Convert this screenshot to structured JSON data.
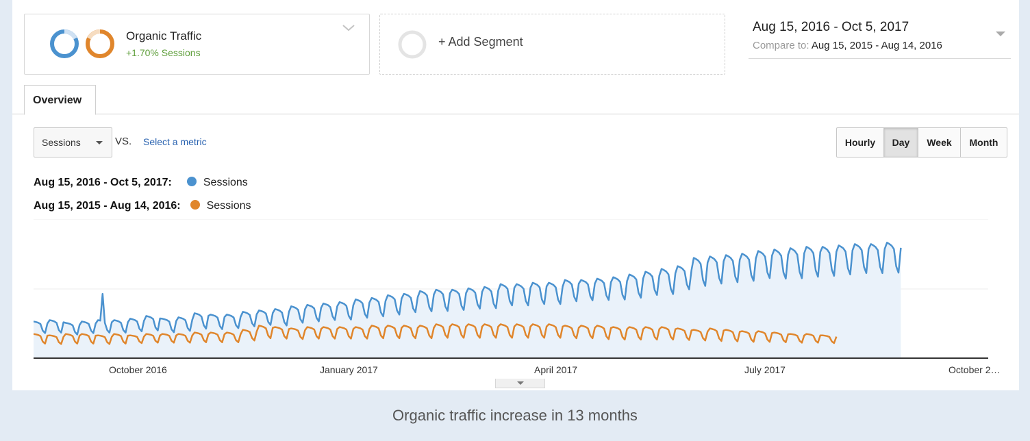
{
  "segments": {
    "primary": {
      "title": "Organic Traffic",
      "subtitle": "+1.70% Sessions"
    },
    "add_label": "+ Add Segment"
  },
  "date_range": {
    "main": "Aug 15, 2016 - Oct 5, 2017",
    "compare_label": "Compare to:",
    "compare_value": "Aug 15, 2015 - Aug 14, 2016"
  },
  "tabs": {
    "overview": "Overview"
  },
  "metric": {
    "selected": "Sessions",
    "vs": "VS.",
    "select_metric": "Select a metric"
  },
  "granularity": [
    "Hourly",
    "Day",
    "Week",
    "Month"
  ],
  "granularity_selected": "Day",
  "legend": [
    {
      "range": "Aug 15, 2016 - Oct 5, 2017:",
      "name": "Sessions",
      "color": "#4b92cf"
    },
    {
      "range": "Aug 15, 2015 - Aug 14, 2016:",
      "name": "Sessions",
      "color": "#e0862c"
    }
  ],
  "colors": {
    "primary": "#4b92cf",
    "compare": "#e0862c",
    "area": "#eaf2fa",
    "positive": "#5e9e3a",
    "link": "#2a63b0"
  },
  "caption": "Organic traffic increase in 13 months",
  "chart_data": {
    "type": "line",
    "x_tick_labels": [
      "October 2016",
      "January 2017",
      "April 2017",
      "July 2017",
      "October 2…"
    ],
    "ylim": [
      0,
      100
    ],
    "grid": "horizontal",
    "legend_position": "top-left",
    "weekly_pattern": [
      1.0,
      0.97,
      0.93,
      0.85,
      0.45,
      0.3,
      0.88
    ],
    "series": [
      {
        "name": "Sessions",
        "period": "Aug 15, 2016 - Oct 5, 2017",
        "color": "#4b92cf",
        "fill": true,
        "x_start": "2016-08-15",
        "points_per_week": 7,
        "weekly_peaks": [
          26,
          27,
          25,
          26,
          27,
          27,
          28,
          30,
          28,
          29,
          32,
          31,
          31,
          33,
          34,
          35,
          37,
          38,
          39,
          40,
          42,
          43,
          45,
          46,
          48,
          49,
          49,
          50,
          51,
          53,
          53,
          54,
          54,
          56,
          56,
          57,
          58,
          60,
          62,
          64,
          66,
          72,
          73,
          74,
          75,
          77,
          78,
          79,
          80,
          80,
          81,
          82,
          82,
          83
        ],
        "weekly_troughs": [
          14,
          14,
          13,
          14,
          14,
          14,
          15,
          15,
          14,
          15,
          16,
          16,
          17,
          18,
          19,
          18,
          20,
          21,
          22,
          22,
          23,
          24,
          25,
          27,
          27,
          27,
          28,
          29,
          29,
          31,
          31,
          32,
          32,
          34,
          35,
          35,
          35,
          36,
          38,
          38,
          42,
          43,
          45,
          46,
          47,
          49,
          48,
          48,
          49,
          50,
          51,
          52,
          52,
          52
        ],
        "spike": {
          "date": "2016-09-14",
          "value": 46
        }
      },
      {
        "name": "Sessions",
        "period": "Aug 15, 2015 - Aug 14, 2016",
        "color": "#e0862c",
        "fill": false,
        "x_start": "2016-08-15",
        "points_per_week": 7,
        "weekly_peaks": [
          17,
          16,
          17,
          17,
          16,
          17,
          16,
          17,
          17,
          17,
          18,
          18,
          18,
          20,
          23,
          22,
          21,
          22,
          22,
          22,
          22,
          23,
          23,
          23,
          23,
          24,
          24,
          24,
          24,
          24,
          24,
          24,
          24,
          23,
          23,
          23,
          22,
          22,
          22,
          22,
          21,
          20,
          21,
          20,
          19,
          19,
          18,
          17,
          17,
          16
        ],
        "weekly_troughs": [
          7,
          7,
          7,
          7,
          7,
          7,
          8,
          8,
          8,
          8,
          8,
          8,
          8,
          9,
          10,
          10,
          10,
          10,
          10,
          10,
          10,
          10,
          10,
          10,
          10,
          10,
          10,
          10,
          10,
          10,
          10,
          10,
          10,
          10,
          10,
          9,
          9,
          9,
          9,
          9,
          9,
          9,
          8,
          8,
          8,
          8,
          8,
          8,
          8,
          8
        ]
      }
    ]
  }
}
